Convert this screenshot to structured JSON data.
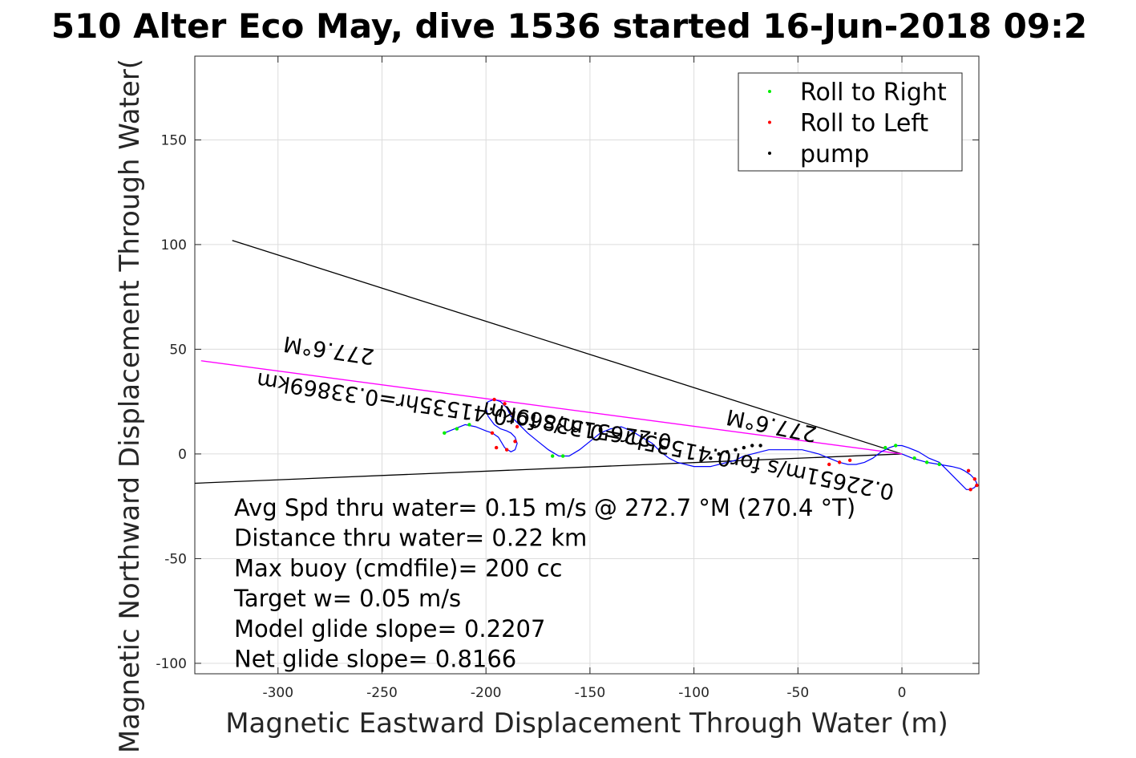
{
  "chart_data": {
    "type": "line",
    "title": "510 Alter Eco May, dive 1536 started 16-Jun-2018 09:2",
    "xlabel": "Magnetic Eastward Displacement Through Water (m)",
    "ylabel": "Magnetic Northward Displacement Through Water(",
    "xlim": [
      -340,
      37
    ],
    "ylim": [
      -105,
      190
    ],
    "xticks": [
      -300,
      -250,
      -200,
      -150,
      -100,
      -50,
      0
    ],
    "yticks": [
      -100,
      -50,
      0,
      50,
      100,
      150
    ],
    "grid": true,
    "legend_position": "top-right",
    "legend": [
      {
        "label": "Roll to Right",
        "color": "#00ee00"
      },
      {
        "label": "Roll to Left",
        "color": "#ff0000"
      },
      {
        "label": "pump",
        "color": "#000000"
      }
    ],
    "track": {
      "color": "#0000ff",
      "x": [
        0,
        5,
        12,
        18,
        24,
        28,
        30,
        33,
        35,
        36,
        35,
        33,
        31,
        29,
        26,
        22,
        18,
        13,
        8,
        3,
        0,
        -3,
        -6,
        -10,
        -14,
        -18,
        -22,
        -26,
        -30,
        -35,
        -40,
        -44,
        -48,
        -52,
        -56,
        -60,
        -64,
        -68,
        -72,
        -76,
        -80,
        -84,
        -88,
        -92,
        -96,
        -100,
        -104,
        -108,
        -112,
        -116,
        -120,
        -125,
        -130,
        -135,
        -140,
        -145,
        -150,
        -155,
        -160,
        -165,
        -170,
        -175,
        -180,
        -184,
        -188,
        -190,
        -193,
        -196,
        -199,
        -200,
        -199,
        -196,
        -193,
        -190,
        -188,
        -186,
        -185,
        -186,
        -188,
        -191,
        -194,
        -197,
        -200,
        -205,
        -210,
        -215,
        -220
      ],
      "y": [
        0,
        -2,
        -4,
        -5,
        -6,
        -7,
        -8,
        -10,
        -12,
        -14,
        -16,
        -17,
        -17,
        -15,
        -12,
        -8,
        -4,
        -2,
        1,
        3,
        4,
        4,
        3,
        1,
        -2,
        -4,
        -5,
        -5,
        -4,
        -2,
        0,
        1,
        2,
        2,
        2,
        2,
        2,
        1,
        0,
        -1,
        -3,
        -4,
        -5,
        -6,
        -6,
        -6,
        -5,
        -4,
        -2,
        1,
        5,
        8,
        11,
        13,
        12,
        10,
        6,
        2,
        -1,
        -1,
        2,
        6,
        10,
        14,
        18,
        22,
        25,
        26,
        25,
        22,
        18,
        14,
        12,
        11,
        10,
        8,
        5,
        2,
        1,
        3,
        8,
        10,
        11,
        13,
        14,
        12,
        10
      ]
    },
    "series": [
      {
        "name": "Roll to Right",
        "color": "#00ee00",
        "points": [
          [
            -220,
            10
          ],
          [
            -214,
            12
          ],
          [
            -208,
            14
          ],
          [
            -168,
            -1
          ],
          [
            -163,
            -1
          ],
          [
            -3,
            4
          ],
          [
            -8,
            3
          ],
          [
            6,
            -2
          ],
          [
            12,
            -4
          ],
          [
            18,
            -5
          ]
        ]
      },
      {
        "name": "Roll to Left",
        "color": "#ff0000",
        "points": [
          [
            -196,
            26
          ],
          [
            -191,
            24
          ],
          [
            -187,
            19
          ],
          [
            -185,
            13
          ],
          [
            -186,
            6
          ],
          [
            -190,
            2
          ],
          [
            -195,
            3
          ],
          [
            -197,
            10
          ],
          [
            -35,
            -5
          ],
          [
            -30,
            -4
          ],
          [
            -25,
            -3
          ],
          [
            32,
            -8
          ],
          [
            35,
            -12
          ],
          [
            36,
            -15
          ],
          [
            33,
            -17
          ]
        ]
      },
      {
        "name": "pump",
        "color": "#000000",
        "points": [
          [
            -92,
            -2
          ],
          [
            -88,
            0
          ],
          [
            -84,
            1
          ],
          [
            -80,
            2
          ],
          [
            -76,
            3
          ],
          [
            -72,
            4
          ],
          [
            -68,
            4
          ]
        ]
      }
    ],
    "lines": [
      {
        "name": "",
        "color": "#000000",
        "x": [
          -322,
          0
        ],
        "y": [
          102,
          0
        ]
      },
      {
        "name": "",
        "color": "#000000",
        "x": [
          -340,
          0
        ],
        "y": [
          -14,
          0
        ]
      },
      {
        "name": "",
        "color": "#ff00ff",
        "x": [
          -337,
          0
        ],
        "y": [
          44.5,
          0
        ]
      }
    ],
    "annotations": [
      {
        "text": "277.6°M",
        "x": -275,
        "y": 53
      },
      {
        "text": "0.22651m/s for0.41535hr=0.33869km",
        "x": -210,
        "y": 24
      },
      {
        "text": "277.6°M",
        "x": -62,
        "y": 17
      },
      {
        "text": "0.22651m/s for0.41535hr=0.33869km",
        "x": -102,
        "y": 5
      }
    ],
    "stats": [
      "Avg Spd thru water=  0.15 m/s @ 272.7 °M (270.4 °T)",
      "Distance thru water=  0.22 km",
      "Max buoy (cmdfile)= 200 cc",
      "Target w= 0.05 m/s",
      "Model glide slope= 0.2207",
      "Net glide slope= 0.8166"
    ]
  }
}
